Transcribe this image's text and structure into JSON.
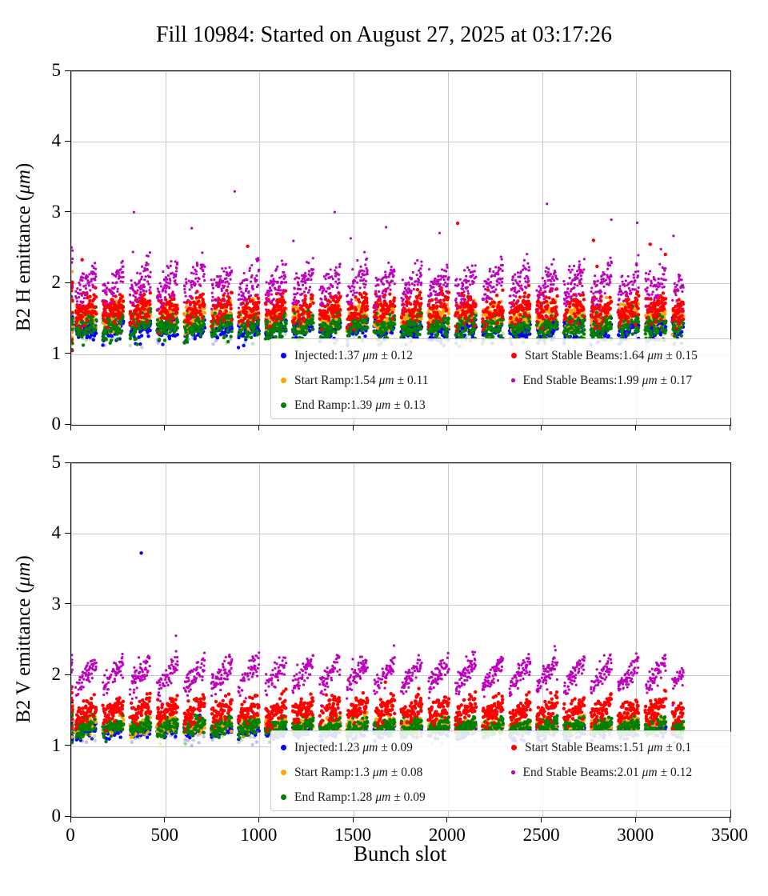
{
  "figure": {
    "title": "Fill 10984: Started on August 27, 2025 at 03:17:26",
    "xlabel": "Bunch slot"
  },
  "chart_data": [
    {
      "type": "scatter",
      "ylabel": "B2 H emittance (μm)",
      "ylabel_prefix": "B2 H emittance (",
      "ylabel_unit": "μm",
      "ylabel_suffix": ")",
      "xlim": [
        0,
        3500
      ],
      "ylim": [
        0,
        5
      ],
      "xticks": [
        0,
        500,
        1000,
        1500,
        2000,
        2500,
        3000,
        3500
      ],
      "yticks": [
        0,
        1,
        2,
        3,
        4,
        5
      ],
      "grid": true,
      "x_data_range": [
        0,
        3250
      ],
      "train_structure": {
        "start": 24,
        "train_length": 110,
        "gap": 34
      },
      "series": [
        {
          "name": "Injected",
          "color": "#0000ff",
          "mean": 1.37,
          "std": 0.12,
          "spread": 0.08,
          "trend": 0.08,
          "marker_px": 4.4,
          "legend_marker_px": 7,
          "legend": {
            "label": "Injected:1.37",
            "unit": "μm",
            "err": "± 0.12"
          }
        },
        {
          "name": "Start Ramp",
          "color": "#ffa500",
          "mean": 1.54,
          "std": 0.11,
          "spread": 0.09,
          "trend": 0.08,
          "marker_px": 4.4,
          "legend_marker_px": 7,
          "legend": {
            "label": "Start Ramp:1.54",
            "unit": "μm",
            "err": "± 0.11"
          }
        },
        {
          "name": "End Ramp",
          "color": "#008000",
          "mean": 1.39,
          "std": 0.13,
          "spread": 0.09,
          "trend": 0.1,
          "marker_px": 4.4,
          "legend_marker_px": 7,
          "legend": {
            "label": "End Ramp:1.39",
            "unit": "μm",
            "err": "± 0.13"
          }
        },
        {
          "name": "Start Stable Beams",
          "color": "#ff0000",
          "mean": 1.64,
          "std": 0.15,
          "spread": 0.1,
          "trend": 0.14,
          "marker_px": 4.4,
          "legend_marker_px": 7,
          "out_prob": 0.004,
          "out_amp": 0.8,
          "legend": {
            "label": "Start Stable Beams:1.64",
            "unit": "μm",
            "err": "± 0.15"
          }
        },
        {
          "name": "End Stable Beams",
          "color": "#bf00bf",
          "mean": 1.99,
          "std": 0.17,
          "spread": 0.12,
          "trend": 0.34,
          "marker_px": 3.2,
          "legend_marker_px": 4.5,
          "out_prob": 0.007,
          "out_amp": 0.8,
          "legend": {
            "label": "End Stable Beams:1.99",
            "unit": "μm",
            "err": "± 0.17"
          }
        }
      ],
      "outliers": [
        {
          "series": 4,
          "x": 868,
          "y": 3.3
        },
        {
          "series": 4,
          "x": 2868,
          "y": 2.9
        },
        {
          "series": 3,
          "x": 2052,
          "y": 2.85
        },
        {
          "series": 4,
          "x": 640,
          "y": 2.78
        },
        {
          "series": 4,
          "x": 1180,
          "y": 2.6
        }
      ]
    },
    {
      "type": "scatter",
      "ylabel": "B2 V emittance (μm)",
      "ylabel_prefix": "B2 V emittance (",
      "ylabel_unit": "μm",
      "ylabel_suffix": ")",
      "xlim": [
        0,
        3500
      ],
      "ylim": [
        0,
        5
      ],
      "xticks": [
        0,
        500,
        1000,
        1500,
        2000,
        2500,
        3000,
        3500
      ],
      "yticks": [
        0,
        1,
        2,
        3,
        4,
        5
      ],
      "grid": true,
      "x_data_range": [
        0,
        3250
      ],
      "train_structure": {
        "start": 24,
        "train_length": 110,
        "gap": 34
      },
      "series": [
        {
          "name": "Injected",
          "color": "#0000ff",
          "mean": 1.23,
          "std": 0.09,
          "spread": 0.055,
          "trend": 0.06,
          "marker_px": 4.4,
          "legend_marker_px": 7,
          "legend": {
            "label": "Injected:1.23",
            "unit": "μm",
            "err": "± 0.09"
          }
        },
        {
          "name": "Start Ramp",
          "color": "#ffa500",
          "mean": 1.3,
          "std": 0.08,
          "spread": 0.055,
          "trend": 0.06,
          "marker_px": 4.4,
          "legend_marker_px": 7,
          "legend": {
            "label": "Start Ramp:1.3",
            "unit": "μm",
            "err": "± 0.08"
          }
        },
        {
          "name": "End Ramp",
          "color": "#008000",
          "mean": 1.28,
          "std": 0.09,
          "spread": 0.06,
          "trend": 0.1,
          "marker_px": 4.4,
          "legend_marker_px": 7,
          "legend": {
            "label": "End Ramp:1.28",
            "unit": "μm",
            "err": "± 0.09"
          }
        },
        {
          "name": "Start Stable Beams",
          "color": "#ff0000",
          "mean": 1.51,
          "std": 0.1,
          "spread": 0.08,
          "trend": 0.2,
          "marker_px": 4.4,
          "legend_marker_px": 7,
          "out_prob": 0.002,
          "out_amp": 0.4,
          "legend": {
            "label": "Start Stable Beams:1.51",
            "unit": "μm",
            "err": "± 0.1"
          }
        },
        {
          "name": "End Stable Beams",
          "color": "#bf00bf",
          "mean": 2.01,
          "std": 0.12,
          "spread": 0.085,
          "trend": 0.38,
          "marker_px": 3.2,
          "legend_marker_px": 4.5,
          "legend": {
            "label": "End Stable Beams:2.01",
            "unit": "μm",
            "err": "± 0.12"
          }
        }
      ],
      "outliers": [
        {
          "series": 0,
          "x": 372,
          "y": 3.73
        },
        {
          "series": 4,
          "x": 556,
          "y": 2.56
        }
      ]
    }
  ]
}
